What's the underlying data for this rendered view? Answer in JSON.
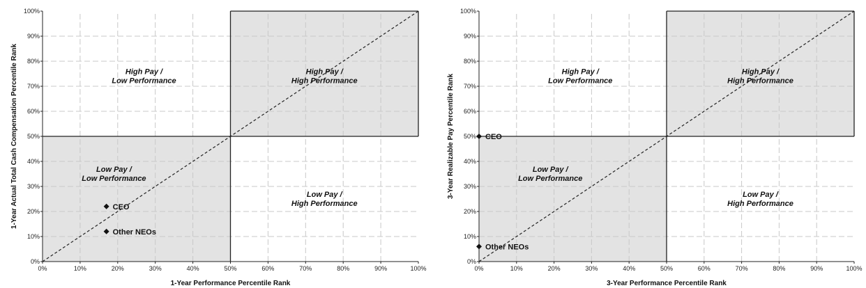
{
  "chart_data": [
    {
      "type": "scatter",
      "xlabel": "1-Year Performance Percentile Rank",
      "ylabel": "1-Year Actual Total Cash Compensation Percentile Rank",
      "xlim": [
        0,
        100
      ],
      "ylim": [
        0,
        100
      ],
      "x_ticks": [
        "0%",
        "10%",
        "20%",
        "30%",
        "40%",
        "50%",
        "60%",
        "70%",
        "80%",
        "90%",
        "100%"
      ],
      "y_ticks": [
        "0%",
        "10%",
        "20%",
        "30%",
        "40%",
        "50%",
        "60%",
        "70%",
        "80%",
        "90%",
        "100%"
      ],
      "grid": "dashed",
      "reference_line": "diagonal-dashed",
      "shaded_quadrants": [
        "bottom-left",
        "top-right"
      ],
      "quadrant_labels": [
        {
          "position": "top-left",
          "line1": "High Pay /",
          "line2": "Low Performance"
        },
        {
          "position": "top-right",
          "line1": "High Pay /",
          "line2": "High Performance"
        },
        {
          "position": "bottom-left",
          "line1": "Low Pay /",
          "line2": "Low Performance"
        },
        {
          "position": "bottom-right",
          "line1": "Low Pay /",
          "line2": "High Performance"
        }
      ],
      "points": [
        {
          "label": "CEO",
          "x": 17,
          "y": 22
        },
        {
          "label": "Other NEOs",
          "x": 17,
          "y": 12
        }
      ]
    },
    {
      "type": "scatter",
      "xlabel": "3-Year Performance Percentile Rank",
      "ylabel": "3-Year Realizable Pay Percentile Rank",
      "xlim": [
        0,
        100
      ],
      "ylim": [
        0,
        100
      ],
      "x_ticks": [
        "0%",
        "10%",
        "20%",
        "30%",
        "40%",
        "50%",
        "60%",
        "70%",
        "80%",
        "90%",
        "100%"
      ],
      "y_ticks": [
        "0%",
        "10%",
        "20%",
        "30%",
        "40%",
        "50%",
        "60%",
        "70%",
        "80%",
        "90%",
        "100%"
      ],
      "grid": "dashed",
      "reference_line": "diagonal-dashed",
      "shaded_quadrants": [
        "bottom-left",
        "top-right"
      ],
      "quadrant_labels": [
        {
          "position": "top-left",
          "line1": "High Pay /",
          "line2": "Low Performance"
        },
        {
          "position": "top-right",
          "line1": "High Pay /",
          "line2": "High Performance"
        },
        {
          "position": "bottom-left",
          "line1": "Low Pay /",
          "line2": "Low Performance"
        },
        {
          "position": "bottom-right",
          "line1": "Low Pay /",
          "line2": "High Performance"
        }
      ],
      "points": [
        {
          "label": "CEO",
          "x": 0,
          "y": 50
        },
        {
          "label": "Other NEOs",
          "x": 0,
          "y": 6
        }
      ]
    }
  ],
  "colors": {
    "shade": "#e3e3e3",
    "grid": "#c8c8c8",
    "axis": "#222222",
    "marker": "#111111",
    "background": "#ffffff"
  }
}
